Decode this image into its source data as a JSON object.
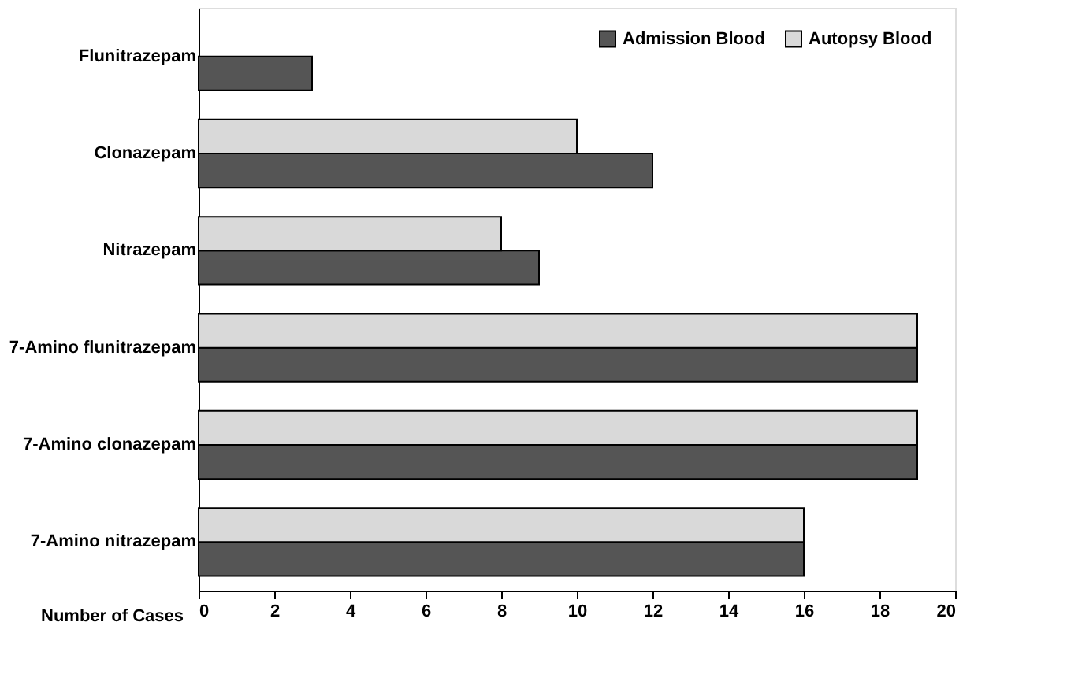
{
  "chart_data": {
    "type": "bar",
    "orientation": "horizontal",
    "xlabel": "Number of Cases",
    "categories": [
      "Flunitrazepam",
      "Clonazepam",
      "Nitrazepam",
      "7-Amino flunitrazepam",
      "7-Amino clonazepam",
      "7-Amino nitrazepam"
    ],
    "series": [
      {
        "name": "Admission Blood",
        "color": "#555555",
        "values": [
          3,
          12,
          9,
          19,
          19,
          16
        ]
      },
      {
        "name": "Autopsy Blood",
        "color": "#d9d9d9",
        "values": [
          null,
          10,
          8,
          19,
          19,
          16
        ]
      }
    ],
    "xlim": [
      0,
      20
    ],
    "xticks": [
      0,
      2,
      4,
      6,
      8,
      10,
      12,
      14,
      16,
      18,
      20
    ],
    "grid": false,
    "legend": "top right"
  }
}
